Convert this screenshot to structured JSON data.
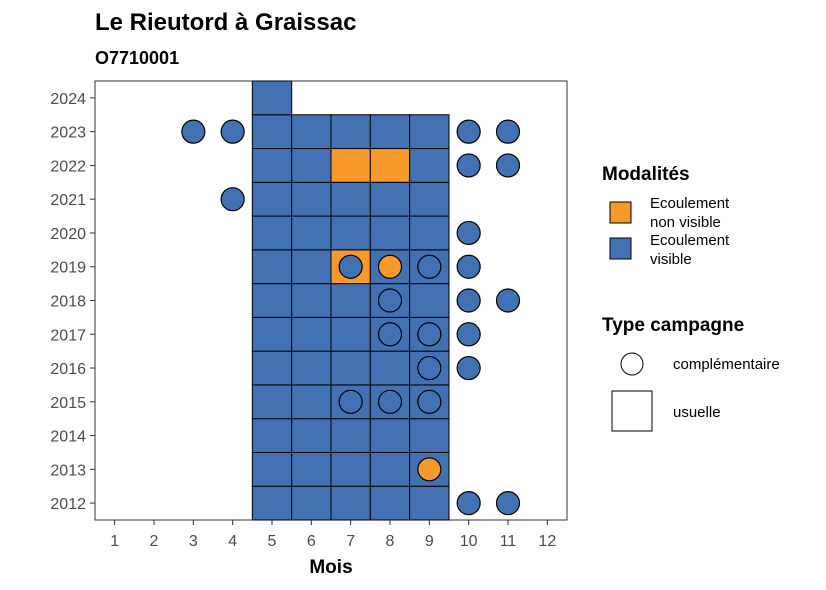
{
  "chart_data": {
    "type": "heatmap",
    "title": "Le Rieutord à Graissac",
    "subtitle": "O7710001",
    "xlabel": "Mois",
    "ylabel": "",
    "x_ticks": [
      1,
      2,
      3,
      4,
      5,
      6,
      7,
      8,
      9,
      10,
      11,
      12
    ],
    "y_ticks": [
      2012,
      2013,
      2014,
      2015,
      2016,
      2017,
      2018,
      2019,
      2020,
      2021,
      2022,
      2023,
      2024
    ],
    "xlim": [
      0.5,
      12.5
    ],
    "ylim": [
      2011.5,
      2024.5
    ],
    "grid": false,
    "colors": {
      "visible": "#4372b4",
      "non_visible": "#f8992c"
    },
    "legend_modalites": {
      "title": "Modalités",
      "entries": [
        {
          "key": "non_visible",
          "label_line1": "Ecoulement",
          "label_line2": "non visible"
        },
        {
          "key": "visible",
          "label_line1": "Ecoulement",
          "label_line2": "visible"
        }
      ]
    },
    "legend_type": {
      "title": "Type campagne",
      "entries": [
        {
          "shape": "circle",
          "label": "complémentaire"
        },
        {
          "shape": "square",
          "label": "usuelle"
        }
      ]
    },
    "tiles": [
      {
        "month": 5,
        "year": 2012,
        "status": "visible"
      },
      {
        "month": 6,
        "year": 2012,
        "status": "visible"
      },
      {
        "month": 7,
        "year": 2012,
        "status": "visible"
      },
      {
        "month": 8,
        "year": 2012,
        "status": "visible"
      },
      {
        "month": 9,
        "year": 2012,
        "status": "visible"
      },
      {
        "month": 5,
        "year": 2013,
        "status": "visible"
      },
      {
        "month": 6,
        "year": 2013,
        "status": "visible"
      },
      {
        "month": 7,
        "year": 2013,
        "status": "visible"
      },
      {
        "month": 8,
        "year": 2013,
        "status": "visible"
      },
      {
        "month": 9,
        "year": 2013,
        "status": "visible"
      },
      {
        "month": 5,
        "year": 2014,
        "status": "visible"
      },
      {
        "month": 6,
        "year": 2014,
        "status": "visible"
      },
      {
        "month": 7,
        "year": 2014,
        "status": "visible"
      },
      {
        "month": 8,
        "year": 2014,
        "status": "visible"
      },
      {
        "month": 9,
        "year": 2014,
        "status": "visible"
      },
      {
        "month": 5,
        "year": 2015,
        "status": "visible"
      },
      {
        "month": 6,
        "year": 2015,
        "status": "visible"
      },
      {
        "month": 7,
        "year": 2015,
        "status": "visible"
      },
      {
        "month": 8,
        "year": 2015,
        "status": "visible"
      },
      {
        "month": 9,
        "year": 2015,
        "status": "visible"
      },
      {
        "month": 5,
        "year": 2016,
        "status": "visible"
      },
      {
        "month": 6,
        "year": 2016,
        "status": "visible"
      },
      {
        "month": 7,
        "year": 2016,
        "status": "visible"
      },
      {
        "month": 8,
        "year": 2016,
        "status": "visible"
      },
      {
        "month": 9,
        "year": 2016,
        "status": "visible"
      },
      {
        "month": 5,
        "year": 2017,
        "status": "visible"
      },
      {
        "month": 6,
        "year": 2017,
        "status": "visible"
      },
      {
        "month": 7,
        "year": 2017,
        "status": "visible"
      },
      {
        "month": 8,
        "year": 2017,
        "status": "visible"
      },
      {
        "month": 9,
        "year": 2017,
        "status": "visible"
      },
      {
        "month": 5,
        "year": 2018,
        "status": "visible"
      },
      {
        "month": 6,
        "year": 2018,
        "status": "visible"
      },
      {
        "month": 7,
        "year": 2018,
        "status": "visible"
      },
      {
        "month": 8,
        "year": 2018,
        "status": "visible"
      },
      {
        "month": 9,
        "year": 2018,
        "status": "visible"
      },
      {
        "month": 5,
        "year": 2019,
        "status": "visible"
      },
      {
        "month": 6,
        "year": 2019,
        "status": "visible"
      },
      {
        "month": 7,
        "year": 2019,
        "status": "non_visible"
      },
      {
        "month": 8,
        "year": 2019,
        "status": "visible"
      },
      {
        "month": 9,
        "year": 2019,
        "status": "visible"
      },
      {
        "month": 5,
        "year": 2020,
        "status": "visible"
      },
      {
        "month": 6,
        "year": 2020,
        "status": "visible"
      },
      {
        "month": 7,
        "year": 2020,
        "status": "visible"
      },
      {
        "month": 8,
        "year": 2020,
        "status": "visible"
      },
      {
        "month": 9,
        "year": 2020,
        "status": "visible"
      },
      {
        "month": 5,
        "year": 2021,
        "status": "visible"
      },
      {
        "month": 6,
        "year": 2021,
        "status": "visible"
      },
      {
        "month": 7,
        "year": 2021,
        "status": "visible"
      },
      {
        "month": 8,
        "year": 2021,
        "status": "visible"
      },
      {
        "month": 9,
        "year": 2021,
        "status": "visible"
      },
      {
        "month": 5,
        "year": 2022,
        "status": "visible"
      },
      {
        "month": 6,
        "year": 2022,
        "status": "visible"
      },
      {
        "month": 7,
        "year": 2022,
        "status": "non_visible"
      },
      {
        "month": 8,
        "year": 2022,
        "status": "non_visible"
      },
      {
        "month": 9,
        "year": 2022,
        "status": "visible"
      },
      {
        "month": 5,
        "year": 2023,
        "status": "visible"
      },
      {
        "month": 6,
        "year": 2023,
        "status": "visible"
      },
      {
        "month": 7,
        "year": 2023,
        "status": "visible"
      },
      {
        "month": 8,
        "year": 2023,
        "status": "visible"
      },
      {
        "month": 9,
        "year": 2023,
        "status": "visible"
      },
      {
        "month": 5,
        "year": 2024,
        "status": "visible"
      }
    ],
    "points": [
      {
        "month": 10,
        "year": 2012,
        "status": "visible"
      },
      {
        "month": 11,
        "year": 2012,
        "status": "visible"
      },
      {
        "month": 9,
        "year": 2013,
        "status": "non_visible"
      },
      {
        "month": 7,
        "year": 2015,
        "status": "visible"
      },
      {
        "month": 8,
        "year": 2015,
        "status": "visible"
      },
      {
        "month": 9,
        "year": 2015,
        "status": "visible"
      },
      {
        "month": 9,
        "year": 2016,
        "status": "visible"
      },
      {
        "month": 10,
        "year": 2016,
        "status": "visible"
      },
      {
        "month": 8,
        "year": 2017,
        "status": "visible"
      },
      {
        "month": 9,
        "year": 2017,
        "status": "visible"
      },
      {
        "month": 10,
        "year": 2017,
        "status": "visible"
      },
      {
        "month": 8,
        "year": 2018,
        "status": "visible"
      },
      {
        "month": 10,
        "year": 2018,
        "status": "visible"
      },
      {
        "month": 11,
        "year": 2018,
        "status": "visible"
      },
      {
        "month": 7,
        "year": 2019,
        "status": "visible"
      },
      {
        "month": 8,
        "year": 2019,
        "status": "non_visible"
      },
      {
        "month": 9,
        "year": 2019,
        "status": "visible"
      },
      {
        "month": 10,
        "year": 2019,
        "status": "visible"
      },
      {
        "month": 10,
        "year": 2020,
        "status": "visible"
      },
      {
        "month": 4,
        "year": 2021,
        "status": "visible"
      },
      {
        "month": 10,
        "year": 2022,
        "status": "visible"
      },
      {
        "month": 11,
        "year": 2022,
        "status": "visible"
      },
      {
        "month": 3,
        "year": 2023,
        "status": "visible"
      },
      {
        "month": 4,
        "year": 2023,
        "status": "visible"
      },
      {
        "month": 10,
        "year": 2023,
        "status": "visible"
      },
      {
        "month": 11,
        "year": 2023,
        "status": "visible"
      }
    ]
  }
}
